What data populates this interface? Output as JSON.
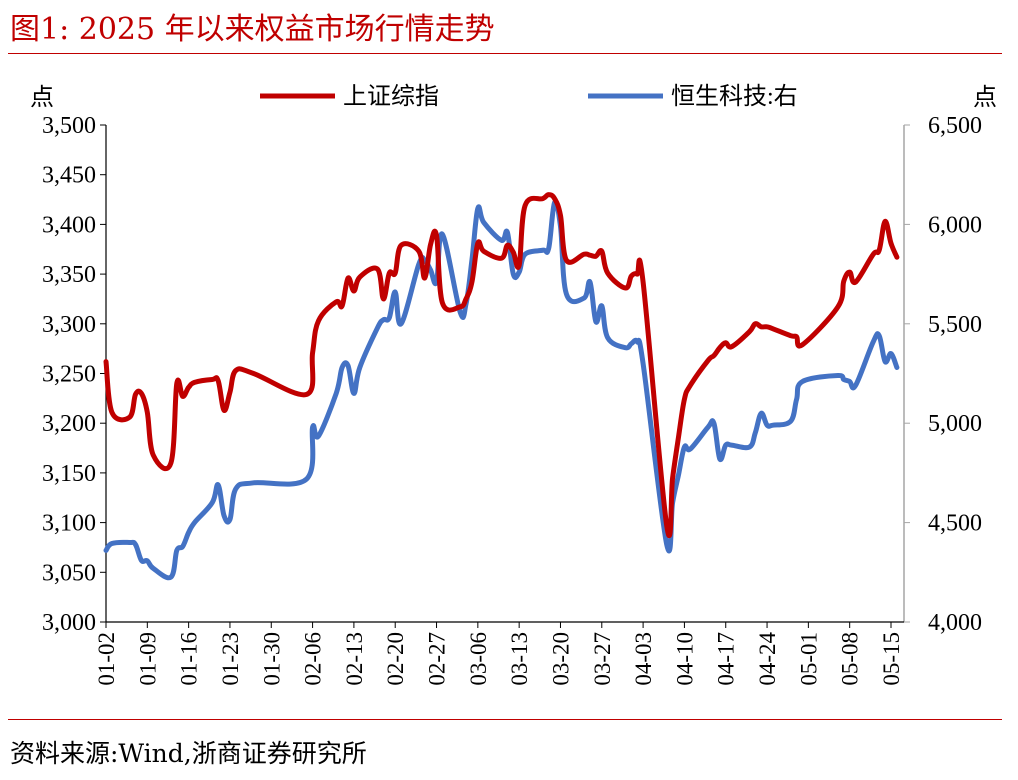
{
  "figure": {
    "title": "图1:  2025 年以来权益市场行情走势",
    "source": "资料来源:Wind,浙商证券研究所"
  },
  "colors": {
    "accent": "#c00000",
    "series_red": "#c00000",
    "series_blue": "#4472c4",
    "axis": "#000000",
    "right_axis": "#a6a6a6"
  },
  "chart_data": {
    "type": "line",
    "title": "",
    "left_axis": {
      "unit_label": "点",
      "ylim": [
        3000,
        3500
      ],
      "ticks": [
        "3,500",
        "3,450",
        "3,400",
        "3,350",
        "3,300",
        "3,250",
        "3,200",
        "3,150",
        "3,100",
        "3,050",
        "3,000"
      ]
    },
    "right_axis": {
      "unit_label": "点",
      "ylim": [
        4000,
        6500
      ],
      "ticks": [
        "6,500",
        "6,000",
        "5,500",
        "5,000",
        "4,500",
        "4,000"
      ]
    },
    "x_tick_labels": [
      "01-02",
      "01-09",
      "01-16",
      "01-23",
      "01-30",
      "02-06",
      "02-13",
      "02-20",
      "02-27",
      "03-06",
      "03-13",
      "03-20",
      "03-27",
      "04-03",
      "04-10",
      "04-17",
      "04-24",
      "05-01",
      "05-08",
      "05-15"
    ],
    "legend": [
      "上证综指",
      "恒生科技:右"
    ],
    "legend_position": "top",
    "grid": false,
    "series": [
      {
        "name": "上证综指",
        "axis": "left",
        "color": "#c00000",
        "points": [
          [
            "01-02",
            3262
          ],
          [
            "01-03",
            3211
          ],
          [
            "01-06",
            3206
          ],
          [
            "01-07",
            3229
          ],
          [
            "01-08",
            3230
          ],
          [
            "01-09",
            3211
          ],
          [
            "01-10",
            3168
          ],
          [
            "01-13",
            3160
          ],
          [
            "01-14",
            3240
          ],
          [
            "01-15",
            3227
          ],
          [
            "01-16",
            3236
          ],
          [
            "01-17",
            3241
          ],
          [
            "01-20",
            3244
          ],
          [
            "01-21",
            3243
          ],
          [
            "01-22",
            3213
          ],
          [
            "01-23",
            3231
          ],
          [
            "01-24",
            3253
          ],
          [
            "01-27",
            3250
          ],
          [
            "02-05",
            3229
          ],
          [
            "02-06",
            3271
          ],
          [
            "02-07",
            3303
          ],
          [
            "02-10",
            3322
          ],
          [
            "02-11",
            3318
          ],
          [
            "02-12",
            3346
          ],
          [
            "02-13",
            3333
          ],
          [
            "02-14",
            3347
          ],
          [
            "02-17",
            3355
          ],
          [
            "02-18",
            3325
          ],
          [
            "02-19",
            3351
          ],
          [
            "02-20",
            3351
          ],
          [
            "02-21",
            3379
          ],
          [
            "02-24",
            3373
          ],
          [
            "02-25",
            3346
          ],
          [
            "02-26",
            3380
          ],
          [
            "02-27",
            3389
          ],
          [
            "02-28",
            3321
          ],
          [
            "03-03",
            3317
          ],
          [
            "03-04",
            3325
          ],
          [
            "03-05",
            3342
          ],
          [
            "03-06",
            3381
          ],
          [
            "03-07",
            3373
          ],
          [
            "03-10",
            3366
          ],
          [
            "03-11",
            3379
          ],
          [
            "03-12",
            3372
          ],
          [
            "03-13",
            3359
          ],
          [
            "03-14",
            3419
          ],
          [
            "03-17",
            3426
          ],
          [
            "03-18",
            3430
          ],
          [
            "03-19",
            3426
          ],
          [
            "03-20",
            3409
          ],
          [
            "03-21",
            3364
          ],
          [
            "03-24",
            3370
          ],
          [
            "03-25",
            3369
          ],
          [
            "03-26",
            3368
          ],
          [
            "03-27",
            3373
          ],
          [
            "03-28",
            3351
          ],
          [
            "03-31",
            3336
          ],
          [
            "04-01",
            3348
          ],
          [
            "04-02",
            3350
          ],
          [
            "04-03",
            3342
          ],
          [
            "04-07",
            3097
          ],
          [
            "04-08",
            3145
          ],
          [
            "04-09",
            3186
          ],
          [
            "04-10",
            3224
          ],
          [
            "04-11",
            3238
          ],
          [
            "04-14",
            3263
          ],
          [
            "04-15",
            3268
          ],
          [
            "04-16",
            3276
          ],
          [
            "04-17",
            3281
          ],
          [
            "04-18",
            3277
          ],
          [
            "04-21",
            3292
          ],
          [
            "04-22",
            3300
          ],
          [
            "04-23",
            3297
          ],
          [
            "04-24",
            3297
          ],
          [
            "04-25",
            3295
          ],
          [
            "04-28",
            3288
          ],
          [
            "04-29",
            3287
          ],
          [
            "04-30",
            3279
          ],
          [
            "05-06",
            3317
          ],
          [
            "05-07",
            3343
          ],
          [
            "05-08",
            3352
          ],
          [
            "05-09",
            3342
          ],
          [
            "05-12",
            3370
          ],
          [
            "05-13",
            3374
          ],
          [
            "05-14",
            3403
          ],
          [
            "05-15",
            3381
          ],
          [
            "05-16",
            3367
          ]
        ]
      },
      {
        "name": "恒生科技",
        "axis": "right",
        "color": "#4472c4",
        "points": [
          [
            "01-02",
            4360
          ],
          [
            "01-03",
            4395
          ],
          [
            "01-06",
            4400
          ],
          [
            "01-07",
            4390
          ],
          [
            "01-08",
            4310
          ],
          [
            "01-09",
            4308
          ],
          [
            "01-10",
            4270
          ],
          [
            "01-13",
            4226
          ],
          [
            "01-14",
            4360
          ],
          [
            "01-15",
            4380
          ],
          [
            "01-16",
            4450
          ],
          [
            "01-17",
            4500
          ],
          [
            "01-20",
            4600
          ],
          [
            "01-21",
            4690
          ],
          [
            "01-22",
            4535
          ],
          [
            "01-23",
            4515
          ],
          [
            "01-24",
            4670
          ],
          [
            "01-27",
            4700
          ],
          [
            "02-05",
            4720
          ],
          [
            "02-06",
            4980
          ],
          [
            "02-07",
            4935
          ],
          [
            "02-10",
            5150
          ],
          [
            "02-11",
            5280
          ],
          [
            "02-12",
            5290
          ],
          [
            "02-13",
            5150
          ],
          [
            "02-14",
            5280
          ],
          [
            "02-17",
            5480
          ],
          [
            "02-18",
            5520
          ],
          [
            "02-19",
            5530
          ],
          [
            "02-20",
            5660
          ],
          [
            "02-21",
            5500
          ],
          [
            "02-24",
            5800
          ],
          [
            "02-25",
            5820
          ],
          [
            "02-26",
            5770
          ],
          [
            "02-27",
            5710
          ],
          [
            "02-28",
            5950
          ],
          [
            "03-03",
            5560
          ],
          [
            "03-04",
            5600
          ],
          [
            "03-05",
            5820
          ],
          [
            "03-06",
            6080
          ],
          [
            "03-07",
            6010
          ],
          [
            "03-10",
            5920
          ],
          [
            "03-11",
            5960
          ],
          [
            "03-12",
            5750
          ],
          [
            "03-13",
            5760
          ],
          [
            "03-14",
            5850
          ],
          [
            "03-17",
            5870
          ],
          [
            "03-18",
            5880
          ],
          [
            "03-19",
            6110
          ],
          [
            "03-20",
            5990
          ],
          [
            "03-21",
            5650
          ],
          [
            "03-24",
            5630
          ],
          [
            "03-25",
            5710
          ],
          [
            "03-26",
            5510
          ],
          [
            "03-27",
            5590
          ],
          [
            "03-28",
            5430
          ],
          [
            "03-31",
            5380
          ],
          [
            "04-01",
            5400
          ],
          [
            "04-02",
            5410
          ],
          [
            "04-03",
            5300
          ],
          [
            "04-07",
            4390
          ],
          [
            "04-08",
            4600
          ],
          [
            "04-09",
            4740
          ],
          [
            "04-10",
            4880
          ],
          [
            "04-11",
            4870
          ],
          [
            "04-14",
            4980
          ],
          [
            "04-15",
            5000
          ],
          [
            "04-16",
            4820
          ],
          [
            "04-17",
            4890
          ],
          [
            "04-18",
            4890
          ],
          [
            "04-21",
            4880
          ],
          [
            "04-22",
            4950
          ],
          [
            "04-23",
            5050
          ],
          [
            "04-24",
            4990
          ],
          [
            "04-25",
            4990
          ],
          [
            "04-28",
            5010
          ],
          [
            "04-29",
            5120
          ],
          [
            "04-30",
            5210
          ],
          [
            "05-06",
            5240
          ],
          [
            "05-07",
            5220
          ],
          [
            "05-08",
            5210
          ],
          [
            "05-09",
            5190
          ],
          [
            "05-12",
            5410
          ],
          [
            "05-13",
            5440
          ],
          [
            "05-14",
            5310
          ],
          [
            "05-15",
            5350
          ],
          [
            "05-16",
            5280
          ]
        ]
      }
    ]
  }
}
